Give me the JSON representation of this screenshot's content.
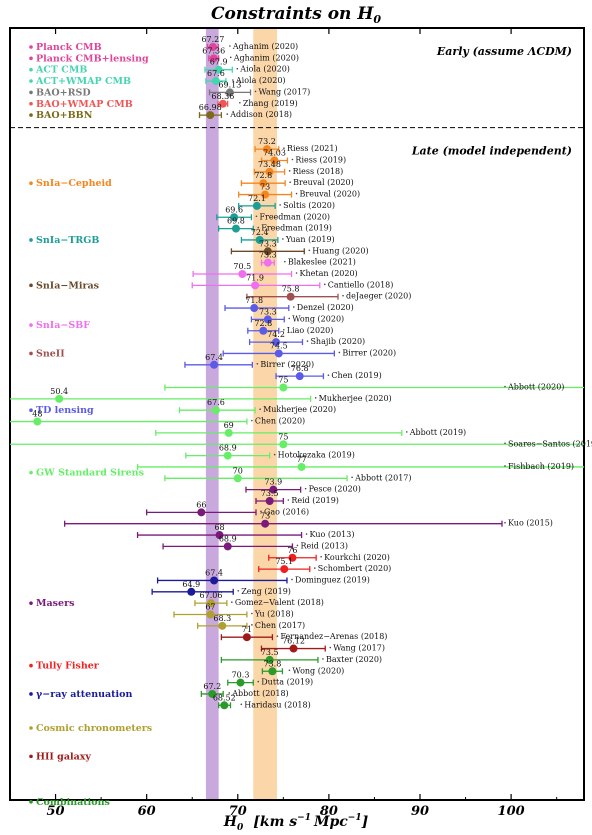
{
  "chart_data": {
    "type": "scatter",
    "title": "Constraints on H",
    "title_sub": "0",
    "xlabel": "H",
    "xlabel_sub": "0",
    "xlabel_units": "[km s",
    "xlabel_units_2": "Mpc",
    "xlabel_exp": "−1",
    "xlabel_units_end": "]",
    "xlim": [
      45,
      108
    ],
    "xticks": [
      50,
      60,
      70,
      80,
      90,
      100
    ],
    "grid": false,
    "bands": [
      {
        "x0": 66.5,
        "x1": 67.9,
        "color": "#c9a8dd"
      },
      {
        "x0": 71.7,
        "x1": 74.3,
        "color": "#fbd6a8"
      }
    ],
    "regions": [
      {
        "label": "Early",
        "note": "(assume ΛCDM)"
      },
      {
        "label": "Late",
        "note": "(model independent)"
      }
    ],
    "groups": [
      {
        "name": "Planck CMB",
        "color": "#e0459a",
        "legend_row": 1
      },
      {
        "name": "Planck CMB+lensing",
        "color": "#e0459a",
        "legend_row": 2
      },
      {
        "name": "ACT CMB",
        "color": "#44d6b0",
        "legend_row": 3
      },
      {
        "name": "ACT+WMAP CMB",
        "color": "#44d6b0",
        "legend_row": 4
      },
      {
        "name": "BAO+RSD",
        "color": "#777777",
        "legend_row": 5
      },
      {
        "name": "BAO+WMAP CMB",
        "color": "#ee5555",
        "legend_row": 6
      },
      {
        "name": "BAO+BBN",
        "color": "#7a6a1a",
        "legend_row": 7
      },
      {
        "name": "SnIa−Cepheid",
        "color": "#f5861f",
        "legend_row": 13
      },
      {
        "name": "SnIa−TRGB",
        "color": "#1b9e96",
        "legend_row": 18
      },
      {
        "name": "SnIa−Miras",
        "color": "#6b4a2a",
        "legend_row": 22
      },
      {
        "name": "SnIa−SBF",
        "color": "#f06ef0",
        "legend_row": 25.5
      },
      {
        "name": "SneII",
        "color": "#a05050",
        "legend_row": 28
      },
      {
        "name": "TD lensing",
        "color": "#5b5be8",
        "legend_row": 33
      },
      {
        "name": "GW Standard Sirens",
        "color": "#66ee66",
        "legend_row": 38.5
      },
      {
        "name": "Masers",
        "color": "#7a1a7a",
        "legend_row": 50
      },
      {
        "name": "Tully Fisher",
        "color": "#ee2020",
        "legend_row": 55.5
      },
      {
        "name": "γ−ray attenuation",
        "color": "#1a1a9a",
        "legend_row": 58
      },
      {
        "name": "Cosmic chronometers",
        "color": "#b0a030",
        "legend_row": 61
      },
      {
        "name": "HII galaxy",
        "color": "#a01a1a",
        "legend_row": 63.5
      },
      {
        "name": "Combinations",
        "color": "#2a9a2a",
        "legend_row": 67.5
      }
    ],
    "points": [
      {
        "row": 1,
        "value": 67.27,
        "label": "67.27",
        "lo": 66.67,
        "hi": 67.87,
        "ref": "Aghanim (2020)",
        "color": "#e0459a"
      },
      {
        "row": 2,
        "value": 67.36,
        "label": "67.36",
        "lo": 66.82,
        "hi": 67.9,
        "ref": "Aghanim (2020)",
        "color": "#e0459a"
      },
      {
        "row": 3,
        "value": 67.9,
        "label": "67.9",
        "lo": 66.4,
        "hi": 69.4,
        "ref": "Aiola (2020)",
        "color": "#44d6b0"
      },
      {
        "row": 4,
        "value": 67.6,
        "label": "67.6",
        "lo": 66.5,
        "hi": 68.7,
        "ref": "Aiola (2020)",
        "color": "#44d6b0"
      },
      {
        "row": 5,
        "value": 69.13,
        "label": "69.13",
        "lo": 66.9,
        "hi": 71.4,
        "ref": "Wang (2017)",
        "color": "#777777"
      },
      {
        "row": 6,
        "value": 68.36,
        "label": "68.36",
        "lo": 67.83,
        "hi": 68.89,
        "ref": "Zhang (2019)",
        "color": "#ee5555"
      },
      {
        "row": 7,
        "value": 66.98,
        "label": "66.98",
        "lo": 65.8,
        "hi": 68.2,
        "ref": "Addison (2018)",
        "color": "#7a6a1a"
      },
      {
        "row": 10,
        "value": 73.2,
        "label": "73.2",
        "lo": 71.9,
        "hi": 74.5,
        "ref": "Riess (2021)",
        "color": "#f5861f"
      },
      {
        "row": 11,
        "value": 74.03,
        "label": "74.03",
        "lo": 72.61,
        "hi": 75.45,
        "ref": "Riess (2019)",
        "color": "#f5861f"
      },
      {
        "row": 12,
        "value": 73.48,
        "label": "73.48",
        "lo": 71.82,
        "hi": 75.14,
        "ref": "Riess (2018)",
        "color": "#f5861f"
      },
      {
        "row": 13,
        "value": 72.8,
        "label": "72.8",
        "lo": 70.4,
        "hi": 75.2,
        "ref": "Breuval (2020)",
        "color": "#f5861f"
      },
      {
        "row": 14,
        "value": 73,
        "label": "73",
        "lo": 70.1,
        "hi": 75.9,
        "ref": "Breuval (2020)",
        "color": "#f5861f"
      },
      {
        "row": 15,
        "value": 72.1,
        "label": "72.1",
        "lo": 70.1,
        "hi": 74.1,
        "ref": "Soltis (2020)",
        "color": "#1b9e96"
      },
      {
        "row": 16,
        "value": 69.6,
        "label": "69.6",
        "lo": 67.7,
        "hi": 71.5,
        "ref": "Freedman (2020)",
        "color": "#1b9e96"
      },
      {
        "row": 17,
        "value": 69.8,
        "label": "69.8",
        "lo": 67.9,
        "hi": 71.7,
        "ref": "Freedman (2019)",
        "color": "#1b9e96"
      },
      {
        "row": 18,
        "value": 72.4,
        "label": "72.4",
        "lo": 70.4,
        "hi": 74.4,
        "ref": "Yuan (2019)",
        "color": "#1b9e96"
      },
      {
        "row": 19,
        "value": 73.3,
        "label": "73.3",
        "lo": 69.3,
        "hi": 77.3,
        "ref": "Huang (2020)",
        "color": "#6b4a2a"
      },
      {
        "row": 20,
        "value": 73.3,
        "label": "73.3",
        "lo": 72.6,
        "hi": 74.0,
        "ref": "Blakeslee (2021)",
        "color": "#f06ef0"
      },
      {
        "row": 21,
        "value": 70.5,
        "label": "70.5",
        "lo": 65.1,
        "hi": 75.9,
        "ref": "Khetan (2020)",
        "color": "#f06ef0"
      },
      {
        "row": 22,
        "value": 71.9,
        "label": "71.9",
        "lo": 65.0,
        "hi": 79.0,
        "ref": "Cantiello (2018)",
        "color": "#f06ef0"
      },
      {
        "row": 23,
        "value": 75.8,
        "label": "75.8",
        "lo": 71.0,
        "hi": 81.0,
        "ref": "deJaeger (2020)",
        "color": "#a05050"
      },
      {
        "row": 24,
        "value": 71.8,
        "label": "71.8",
        "lo": 68.6,
        "hi": 75.6,
        "ref": "Denzel (2020)",
        "color": "#5b5be8"
      },
      {
        "row": 25,
        "value": 73.3,
        "label": "73.3",
        "lo": 71.5,
        "hi": 75.1,
        "ref": "Wong (2020)",
        "color": "#5b5be8"
      },
      {
        "row": 26,
        "value": 72.8,
        "label": "72.8",
        "lo": 71.1,
        "hi": 74.5,
        "ref": "Liao (2020)",
        "color": "#5b5be8"
      },
      {
        "row": 27,
        "value": 74.2,
        "label": "74.2",
        "lo": 71.3,
        "hi": 77.1,
        "ref": "Shajib (2020)",
        "color": "#5b5be8"
      },
      {
        "row": 28,
        "value": 74.5,
        "label": "74.5",
        "lo": 68.4,
        "hi": 80.6,
        "ref": "Birrer (2020)",
        "color": "#5b5be8"
      },
      {
        "row": 29,
        "value": 67.4,
        "label": "67.4",
        "lo": 64.2,
        "hi": 71.6,
        "ref": "Birrer (2020)",
        "color": "#5b5be8"
      },
      {
        "row": 30,
        "value": 76.8,
        "label": "76.8",
        "lo": 74.2,
        "hi": 79.4,
        "ref": "Chen (2019)",
        "color": "#5b5be8"
      },
      {
        "row": 31,
        "value": 75,
        "label": "75",
        "lo": 62,
        "hi": 110,
        "ref": "Abbott (2020)",
        "color": "#66ee66"
      },
      {
        "row": 32,
        "value": 50.4,
        "label": "50.4",
        "lo": 40,
        "hi": 78,
        "ref": "Mukherjee (2020)",
        "color": "#66ee66"
      },
      {
        "row": 33,
        "value": 67.6,
        "label": "67.6",
        "lo": 63.6,
        "hi": 71.9,
        "ref": "Mukherjee (2020)",
        "color": "#66ee66"
      },
      {
        "row": 34,
        "value": 48,
        "label": "48",
        "lo": 38,
        "hi": 71,
        "ref": "Chen (2020)",
        "color": "#66ee66"
      },
      {
        "row": 35,
        "value": 69,
        "label": "69",
        "lo": 61,
        "hi": 88,
        "ref": "Abbott (2019)",
        "color": "#66ee66"
      },
      {
        "row": 36,
        "value": 75,
        "label": "75",
        "lo": 40,
        "hi": 110,
        "ref": "Soares−Santos (2019)",
        "color": "#66ee66"
      },
      {
        "row": 37,
        "value": 68.9,
        "label": "68.9",
        "lo": 64.3,
        "hi": 73.5,
        "ref": "Hotokezaka (2019)",
        "color": "#66ee66"
      },
      {
        "row": 38,
        "value": 77,
        "label": "77",
        "lo": 59,
        "hi": 110,
        "ref": "Fishbach (2019)",
        "color": "#66ee66"
      },
      {
        "row": 39,
        "value": 70,
        "label": "70",
        "lo": 62,
        "hi": 82,
        "ref": "Abbott (2017)",
        "color": "#66ee66"
      },
      {
        "row": 40,
        "value": 73.9,
        "label": "73.9",
        "lo": 70.9,
        "hi": 76.9,
        "ref": "Pesce (2020)",
        "color": "#7a1a7a"
      },
      {
        "row": 41,
        "value": 73.5,
        "label": "73.5",
        "lo": 72.0,
        "hi": 75.0,
        "ref": "Reid (2019)",
        "color": "#7a1a7a"
      },
      {
        "row": 42,
        "value": 66,
        "label": "66",
        "lo": 60,
        "hi": 72,
        "ref": "Gao (2016)",
        "color": "#7a1a7a"
      },
      {
        "row": 43,
        "value": 73,
        "label": "73",
        "lo": 51,
        "hi": 99,
        "ref": "Kuo (2015)",
        "color": "#7a1a7a"
      },
      {
        "row": 44,
        "value": 68,
        "label": "68",
        "lo": 59,
        "hi": 77,
        "ref": "Kuo (2013)",
        "color": "#7a1a7a"
      },
      {
        "row": 45,
        "value": 68.9,
        "label": "68.9",
        "lo": 61.8,
        "hi": 76.0,
        "ref": "Reid (2013)",
        "color": "#7a1a7a"
      },
      {
        "row": 46,
        "value": 76,
        "label": "76",
        "lo": 73.4,
        "hi": 78.6,
        "ref": "Kourkchi (2020)",
        "color": "#ee2020"
      },
      {
        "row": 47,
        "value": 75.1,
        "label": "75.1",
        "lo": 72.3,
        "hi": 77.9,
        "ref": "Schombert (2020)",
        "color": "#ee2020"
      },
      {
        "row": 48,
        "value": 67.4,
        "label": "67.4",
        "lo": 61.2,
        "hi": 75.4,
        "ref": "Dominguez (2019)",
        "color": "#1a1a9a"
      },
      {
        "row": 49,
        "value": 64.9,
        "label": "64.9",
        "lo": 60.6,
        "hi": 69.5,
        "ref": "Zeng (2019)",
        "color": "#1a1a9a"
      },
      {
        "row": 50,
        "value": 67.06,
        "label": "67.06",
        "lo": 65.3,
        "hi": 68.8,
        "ref": "Gomez−Valent (2018)",
        "color": "#b0a030"
      },
      {
        "row": 51,
        "value": 67,
        "label": "67",
        "lo": 63,
        "hi": 71,
        "ref": "Yu (2018)",
        "color": "#b0a030"
      },
      {
        "row": 52,
        "value": 68.3,
        "label": "68.3",
        "lo": 65.6,
        "hi": 71.0,
        "ref": "Chen (2017)",
        "color": "#b0a030"
      },
      {
        "row": 53,
        "value": 71,
        "label": "71",
        "lo": 68.2,
        "hi": 73.8,
        "ref": "Fernandez−Arenas (2018)",
        "color": "#a01a1a"
      },
      {
        "row": 54,
        "value": 76.12,
        "label": "76.12",
        "lo": 72.6,
        "hi": 79.6,
        "ref": "Wang (2017)",
        "color": "#a01a1a"
      },
      {
        "row": 55,
        "value": 73.5,
        "label": "73.5",
        "lo": 68.2,
        "hi": 78.8,
        "ref": "Baxter (2020)",
        "color": "#2a9a2a"
      },
      {
        "row": 56,
        "value": 73.8,
        "label": "73.8",
        "lo": 72.7,
        "hi": 74.9,
        "ref": "Wong (2020)",
        "color": "#2a9a2a"
      },
      {
        "row": 57,
        "value": 70.3,
        "label": "70.3",
        "lo": 68.9,
        "hi": 71.7,
        "ref": "Dutta (2019)",
        "color": "#2a9a2a"
      },
      {
        "row": 58,
        "value": 67.2,
        "label": "67.2",
        "lo": 66.0,
        "hi": 68.4,
        "ref": "Abbott (2018)",
        "color": "#2a9a2a"
      },
      {
        "row": 59,
        "value": 68.52,
        "label": "68.52",
        "lo": 67.9,
        "hi": 69.2,
        "ref": "Haridasu (2018)",
        "color": "#2a9a2a"
      }
    ]
  }
}
